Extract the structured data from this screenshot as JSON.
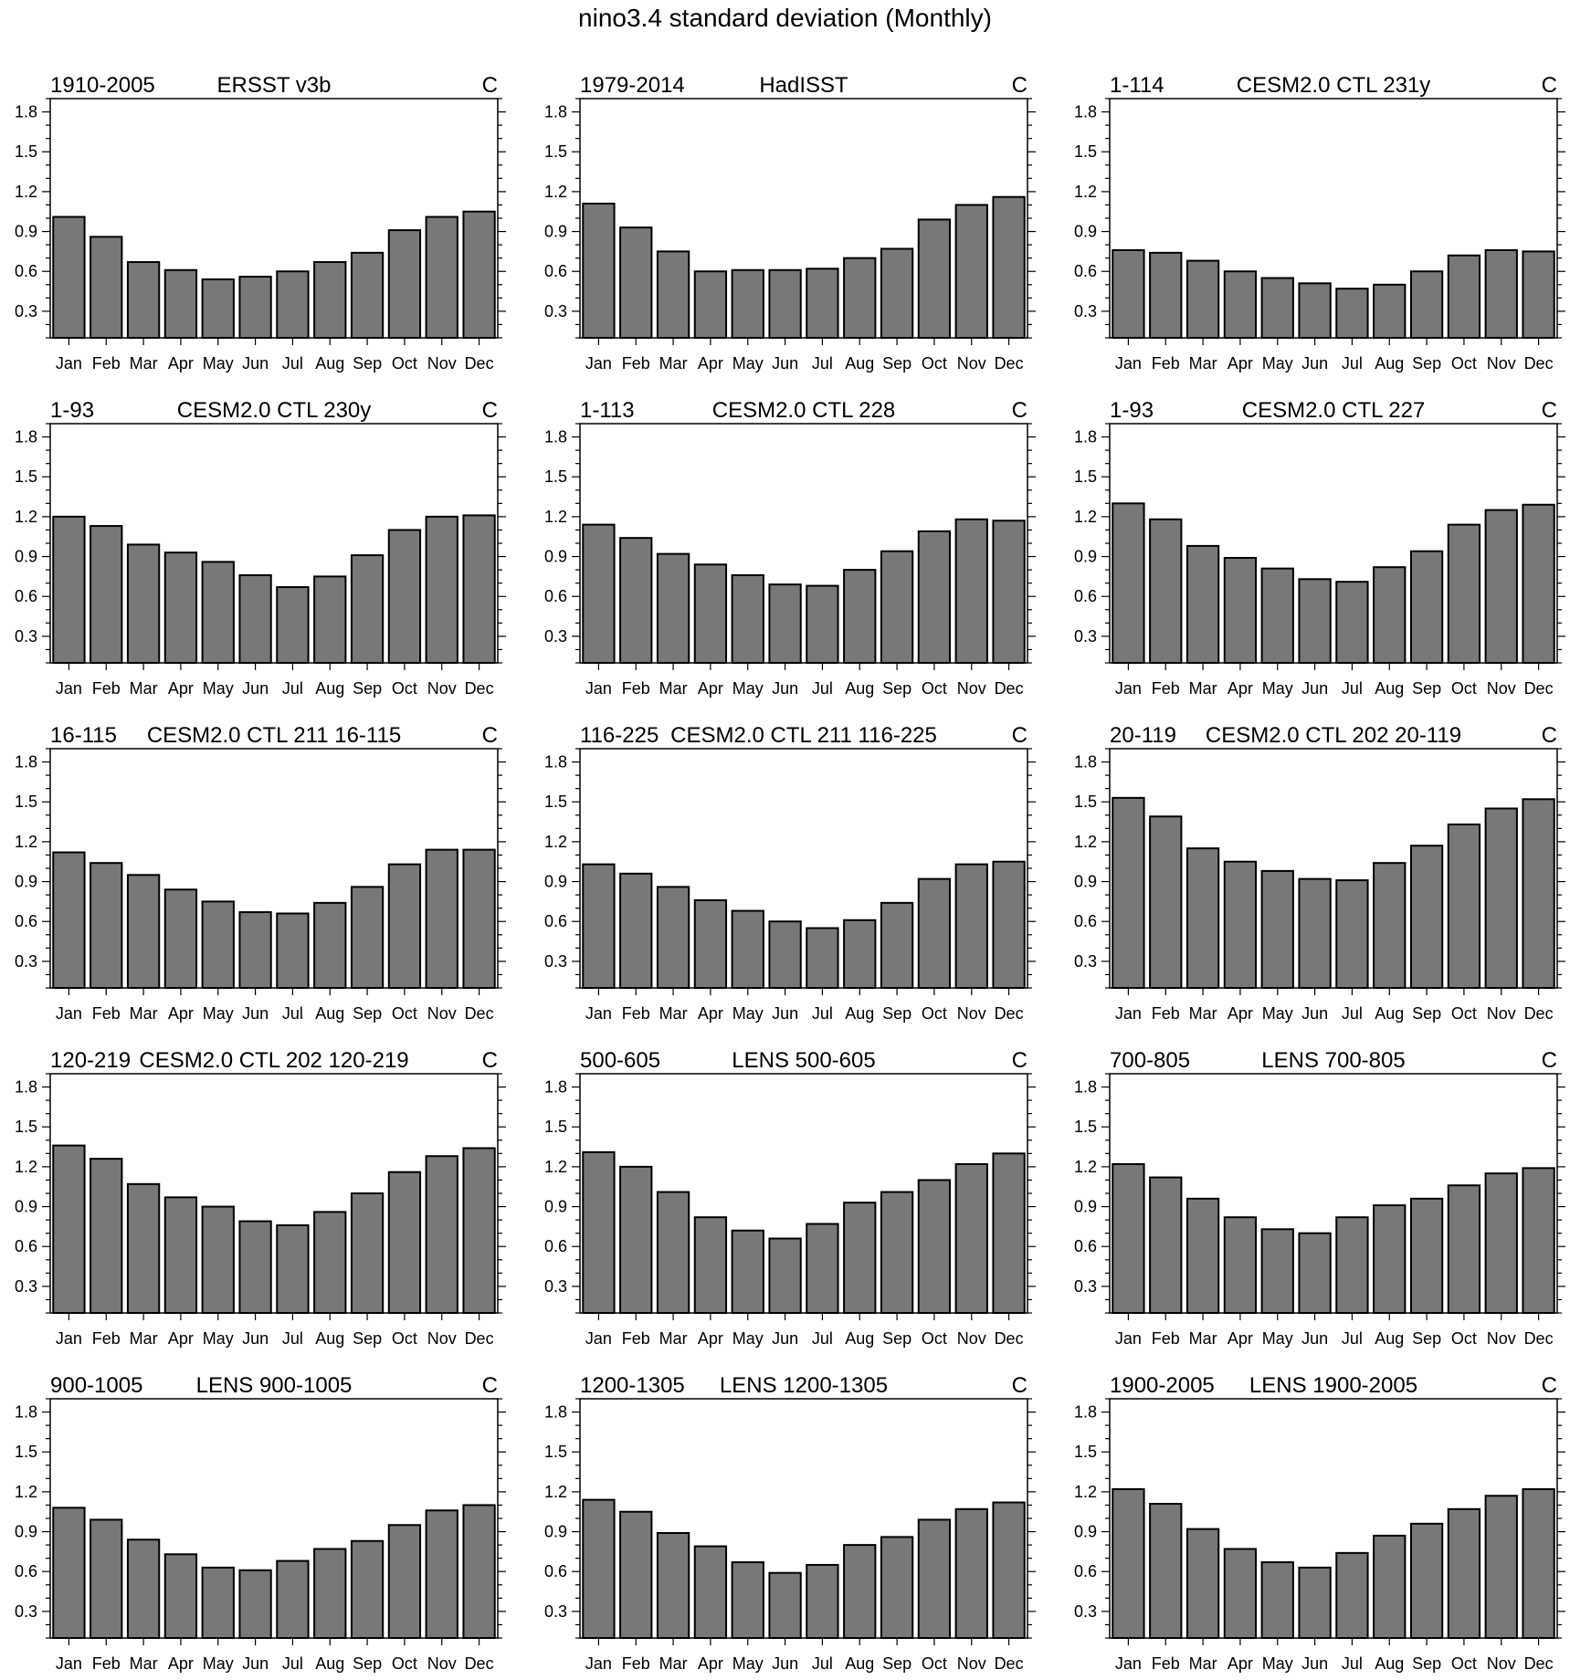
{
  "title": "nino3.4 standard deviation (Monthly)",
  "chart_data": [
    {
      "type": "bar",
      "period": "1910-2005",
      "name": "ERSST v3b",
      "units": "C",
      "categories": [
        "Jan",
        "Feb",
        "Mar",
        "Apr",
        "May",
        "Jun",
        "Jul",
        "Aug",
        "Sep",
        "Oct",
        "Nov",
        "Dec"
      ],
      "values": [
        1.01,
        0.86,
        0.67,
        0.61,
        0.54,
        0.56,
        0.6,
        0.67,
        0.74,
        0.91,
        1.01,
        1.05
      ],
      "ylim": [
        0.1,
        1.9
      ],
      "yticks": [
        "0.3",
        "0.6",
        "0.9",
        "1.2",
        "1.5",
        "1.8"
      ]
    },
    {
      "type": "bar",
      "period": "1979-2014",
      "name": "HadISST",
      "units": "C",
      "categories": [
        "Jan",
        "Feb",
        "Mar",
        "Apr",
        "May",
        "Jun",
        "Jul",
        "Aug",
        "Sep",
        "Oct",
        "Nov",
        "Dec"
      ],
      "values": [
        1.11,
        0.93,
        0.75,
        0.6,
        0.61,
        0.61,
        0.62,
        0.7,
        0.77,
        0.99,
        1.1,
        1.16
      ],
      "ylim": [
        0.1,
        1.9
      ],
      "yticks": [
        "0.3",
        "0.6",
        "0.9",
        "1.2",
        "1.5",
        "1.8"
      ]
    },
    {
      "type": "bar",
      "period": "1-114",
      "name": "CESM2.0 CTL 231y",
      "units": "C",
      "categories": [
        "Jan",
        "Feb",
        "Mar",
        "Apr",
        "May",
        "Jun",
        "Jul",
        "Aug",
        "Sep",
        "Oct",
        "Nov",
        "Dec"
      ],
      "values": [
        0.76,
        0.74,
        0.68,
        0.6,
        0.55,
        0.51,
        0.47,
        0.5,
        0.6,
        0.72,
        0.76,
        0.75
      ],
      "ylim": [
        0.1,
        1.9
      ],
      "yticks": [
        "0.3",
        "0.6",
        "0.9",
        "1.2",
        "1.5",
        "1.8"
      ]
    },
    {
      "type": "bar",
      "period": "1-93",
      "name": "CESM2.0 CTL 230y",
      "units": "C",
      "categories": [
        "Jan",
        "Feb",
        "Mar",
        "Apr",
        "May",
        "Jun",
        "Jul",
        "Aug",
        "Sep",
        "Oct",
        "Nov",
        "Dec"
      ],
      "values": [
        1.2,
        1.13,
        0.99,
        0.93,
        0.86,
        0.76,
        0.67,
        0.75,
        0.91,
        1.1,
        1.2,
        1.21
      ],
      "ylim": [
        0.1,
        1.9
      ],
      "yticks": [
        "0.3",
        "0.6",
        "0.9",
        "1.2",
        "1.5",
        "1.8"
      ]
    },
    {
      "type": "bar",
      "period": "1-113",
      "name": "CESM2.0 CTL 228",
      "units": "C",
      "categories": [
        "Jan",
        "Feb",
        "Mar",
        "Apr",
        "May",
        "Jun",
        "Jul",
        "Aug",
        "Sep",
        "Oct",
        "Nov",
        "Dec"
      ],
      "values": [
        1.14,
        1.04,
        0.92,
        0.84,
        0.76,
        0.69,
        0.68,
        0.8,
        0.94,
        1.09,
        1.18,
        1.17
      ],
      "ylim": [
        0.1,
        1.9
      ],
      "yticks": [
        "0.3",
        "0.6",
        "0.9",
        "1.2",
        "1.5",
        "1.8"
      ]
    },
    {
      "type": "bar",
      "period": "1-93",
      "name": "CESM2.0 CTL 227",
      "units": "C",
      "categories": [
        "Jan",
        "Feb",
        "Mar",
        "Apr",
        "May",
        "Jun",
        "Jul",
        "Aug",
        "Sep",
        "Oct",
        "Nov",
        "Dec"
      ],
      "values": [
        1.3,
        1.18,
        0.98,
        0.89,
        0.81,
        0.73,
        0.71,
        0.82,
        0.94,
        1.14,
        1.25,
        1.29
      ],
      "ylim": [
        0.1,
        1.9
      ],
      "yticks": [
        "0.3",
        "0.6",
        "0.9",
        "1.2",
        "1.5",
        "1.8"
      ]
    },
    {
      "type": "bar",
      "period": "16-115",
      "name": "CESM2.0 CTL 211 16-115",
      "units": "C",
      "categories": [
        "Jan",
        "Feb",
        "Mar",
        "Apr",
        "May",
        "Jun",
        "Jul",
        "Aug",
        "Sep",
        "Oct",
        "Nov",
        "Dec"
      ],
      "values": [
        1.12,
        1.04,
        0.95,
        0.84,
        0.75,
        0.67,
        0.66,
        0.74,
        0.86,
        1.03,
        1.14,
        1.14
      ],
      "ylim": [
        0.1,
        1.9
      ],
      "yticks": [
        "0.3",
        "0.6",
        "0.9",
        "1.2",
        "1.5",
        "1.8"
      ]
    },
    {
      "type": "bar",
      "period": "116-225",
      "name": "CESM2.0 CTL 211 116-225",
      "units": "C",
      "categories": [
        "Jan",
        "Feb",
        "Mar",
        "Apr",
        "May",
        "Jun",
        "Jul",
        "Aug",
        "Sep",
        "Oct",
        "Nov",
        "Dec"
      ],
      "values": [
        1.03,
        0.96,
        0.86,
        0.76,
        0.68,
        0.6,
        0.55,
        0.61,
        0.74,
        0.92,
        1.03,
        1.05
      ],
      "ylim": [
        0.1,
        1.9
      ],
      "yticks": [
        "0.3",
        "0.6",
        "0.9",
        "1.2",
        "1.5",
        "1.8"
      ]
    },
    {
      "type": "bar",
      "period": "20-119",
      "name": "CESM2.0 CTL 202 20-119",
      "units": "C",
      "categories": [
        "Jan",
        "Feb",
        "Mar",
        "Apr",
        "May",
        "Jun",
        "Jul",
        "Aug",
        "Sep",
        "Oct",
        "Nov",
        "Dec"
      ],
      "values": [
        1.53,
        1.39,
        1.15,
        1.05,
        0.98,
        0.92,
        0.91,
        1.04,
        1.17,
        1.33,
        1.45,
        1.52
      ],
      "ylim": [
        0.1,
        1.9
      ],
      "yticks": [
        "0.3",
        "0.6",
        "0.9",
        "1.2",
        "1.5",
        "1.8"
      ]
    },
    {
      "type": "bar",
      "period": "120-219",
      "name": "CESM2.0 CTL 202 120-219",
      "units": "C",
      "categories": [
        "Jan",
        "Feb",
        "Mar",
        "Apr",
        "May",
        "Jun",
        "Jul",
        "Aug",
        "Sep",
        "Oct",
        "Nov",
        "Dec"
      ],
      "values": [
        1.36,
        1.26,
        1.07,
        0.97,
        0.9,
        0.79,
        0.76,
        0.86,
        1.0,
        1.16,
        1.28,
        1.34
      ],
      "ylim": [
        0.1,
        1.9
      ],
      "yticks": [
        "0.3",
        "0.6",
        "0.9",
        "1.2",
        "1.5",
        "1.8"
      ]
    },
    {
      "type": "bar",
      "period": "500-605",
      "name": "LENS 500-605",
      "units": "C",
      "categories": [
        "Jan",
        "Feb",
        "Mar",
        "Apr",
        "May",
        "Jun",
        "Jul",
        "Aug",
        "Sep",
        "Oct",
        "Nov",
        "Dec"
      ],
      "values": [
        1.31,
        1.2,
        1.01,
        0.82,
        0.72,
        0.66,
        0.77,
        0.93,
        1.01,
        1.1,
        1.22,
        1.3
      ],
      "ylim": [
        0.1,
        1.9
      ],
      "yticks": [
        "0.3",
        "0.6",
        "0.9",
        "1.2",
        "1.5",
        "1.8"
      ]
    },
    {
      "type": "bar",
      "period": "700-805",
      "name": "LENS 700-805",
      "units": "C",
      "categories": [
        "Jan",
        "Feb",
        "Mar",
        "Apr",
        "May",
        "Jun",
        "Jul",
        "Aug",
        "Sep",
        "Oct",
        "Nov",
        "Dec"
      ],
      "values": [
        1.22,
        1.12,
        0.96,
        0.82,
        0.73,
        0.7,
        0.82,
        0.91,
        0.96,
        1.06,
        1.15,
        1.19
      ],
      "ylim": [
        0.1,
        1.9
      ],
      "yticks": [
        "0.3",
        "0.6",
        "0.9",
        "1.2",
        "1.5",
        "1.8"
      ]
    },
    {
      "type": "bar",
      "period": "900-1005",
      "name": "LENS 900-1005",
      "units": "C",
      "categories": [
        "Jan",
        "Feb",
        "Mar",
        "Apr",
        "May",
        "Jun",
        "Jul",
        "Aug",
        "Sep",
        "Oct",
        "Nov",
        "Dec"
      ],
      "values": [
        1.08,
        0.99,
        0.84,
        0.73,
        0.63,
        0.61,
        0.68,
        0.77,
        0.83,
        0.95,
        1.06,
        1.1
      ],
      "ylim": [
        0.1,
        1.9
      ],
      "yticks": [
        "0.3",
        "0.6",
        "0.9",
        "1.2",
        "1.5",
        "1.8"
      ]
    },
    {
      "type": "bar",
      "period": "1200-1305",
      "name": "LENS 1200-1305",
      "units": "C",
      "categories": [
        "Jan",
        "Feb",
        "Mar",
        "Apr",
        "May",
        "Jun",
        "Jul",
        "Aug",
        "Sep",
        "Oct",
        "Nov",
        "Dec"
      ],
      "values": [
        1.14,
        1.05,
        0.89,
        0.79,
        0.67,
        0.59,
        0.65,
        0.8,
        0.86,
        0.99,
        1.07,
        1.12
      ],
      "ylim": [
        0.1,
        1.9
      ],
      "yticks": [
        "0.3",
        "0.6",
        "0.9",
        "1.2",
        "1.5",
        "1.8"
      ]
    },
    {
      "type": "bar",
      "period": "1900-2005",
      "name": "LENS 1900-2005",
      "units": "C",
      "categories": [
        "Jan",
        "Feb",
        "Mar",
        "Apr",
        "May",
        "Jun",
        "Jul",
        "Aug",
        "Sep",
        "Oct",
        "Nov",
        "Dec"
      ],
      "values": [
        1.22,
        1.11,
        0.92,
        0.77,
        0.67,
        0.63,
        0.74,
        0.87,
        0.96,
        1.07,
        1.17,
        1.22
      ],
      "ylim": [
        0.1,
        1.9
      ],
      "yticks": [
        "0.3",
        "0.6",
        "0.9",
        "1.2",
        "1.5",
        "1.8"
      ]
    }
  ],
  "colors": {
    "bar_fill": "#787878",
    "bar_edge": "#000000",
    "axis": "#000000",
    "text": "#000000"
  }
}
